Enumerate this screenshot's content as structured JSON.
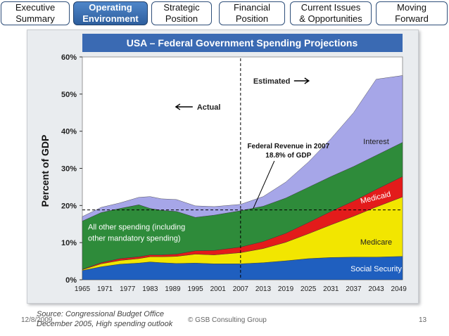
{
  "tabs": [
    {
      "line1": "Executive",
      "line2": "Summary",
      "active": false
    },
    {
      "line1": "Operating",
      "line2": "Environment",
      "active": true
    },
    {
      "line1": "Strategic",
      "line2": "Position",
      "active": false
    },
    {
      "line1": "Financial",
      "line2": "Position",
      "active": false
    },
    {
      "line1": "Current Issues",
      "line2": "& Opportunities",
      "active": false
    },
    {
      "line1": "Moving",
      "line2": "Forward",
      "active": false
    }
  ],
  "chart_data": {
    "type": "area",
    "title": "USA – Federal Government Spending Projections",
    "ylabel": "Percent of GDP",
    "xlabel": "",
    "ylim": [
      0,
      60
    ],
    "xlim": [
      1965,
      2050
    ],
    "y_ticks": [
      "0%",
      "10%",
      "20%",
      "30%",
      "40%",
      "50%",
      "60%"
    ],
    "x_ticks": [
      "1965",
      "1971",
      "1977",
      "1983",
      "1989",
      "1995",
      "2001",
      "2007",
      "2013",
      "2019",
      "2025",
      "2031",
      "2037",
      "2043",
      "2049"
    ],
    "x": [
      1965,
      1970,
      1975,
      1980,
      1983,
      1986,
      1990,
      1995,
      2000,
      2007,
      2013,
      2019,
      2025,
      2031,
      2037,
      2043,
      2050
    ],
    "series": [
      {
        "name": "Social Security",
        "color": "#1f5fbf",
        "values": [
          2.5,
          3.5,
          4.2,
          4.5,
          4.8,
          4.6,
          4.4,
          4.5,
          4.3,
          4.3,
          4.6,
          5.1,
          5.7,
          6.0,
          6.1,
          6.1,
          6.3
        ]
      },
      {
        "name": "Medicare",
        "color": "#f2e600",
        "values": [
          0.2,
          0.8,
          1.0,
          1.2,
          1.4,
          1.6,
          1.9,
          2.4,
          2.4,
          3.0,
          3.8,
          5.0,
          6.7,
          8.8,
          11.0,
          13.5,
          16.0
        ]
      },
      {
        "name": "Medicaid",
        "color": "#e31b1b",
        "values": [
          0.1,
          0.3,
          0.5,
          0.5,
          0.5,
          0.5,
          0.6,
          0.9,
          1.2,
          1.5,
          1.9,
          2.4,
          3.0,
          3.6,
          4.1,
          4.7,
          5.5
        ]
      },
      {
        "name": "All other spending (including other mandatory spending)",
        "color": "#2e8b3a",
        "values": [
          13.0,
          13.5,
          13.5,
          14.0,
          12.5,
          12.0,
          11.5,
          9.0,
          9.5,
          9.8,
          9.5,
          9.5,
          9.5,
          9.4,
          9.3,
          9.2,
          9.2
        ]
      },
      {
        "name": "Interest",
        "color": "#a6a6e8",
        "values": [
          1.2,
          1.4,
          1.5,
          2.0,
          3.2,
          3.1,
          3.2,
          3.1,
          2.3,
          1.7,
          2.6,
          4.3,
          6.8,
          10.2,
          14.5,
          20.5,
          18.0
        ]
      }
    ],
    "revenue_line": {
      "value": 18.8,
      "label_line1": "Federal Revenue in 2007",
      "label_line2": "18.8% of GDP"
    },
    "divider_year": 2007,
    "annotations": {
      "estimated": "Estimated",
      "actual": "Actual"
    }
  },
  "footer": {
    "source_line1": "Source: Congressional Budget Office",
    "source_line2": "December 2005, High spending outlook",
    "date": "12/8/2009",
    "copyright": "© GSB Consulting Group",
    "page": "13"
  }
}
